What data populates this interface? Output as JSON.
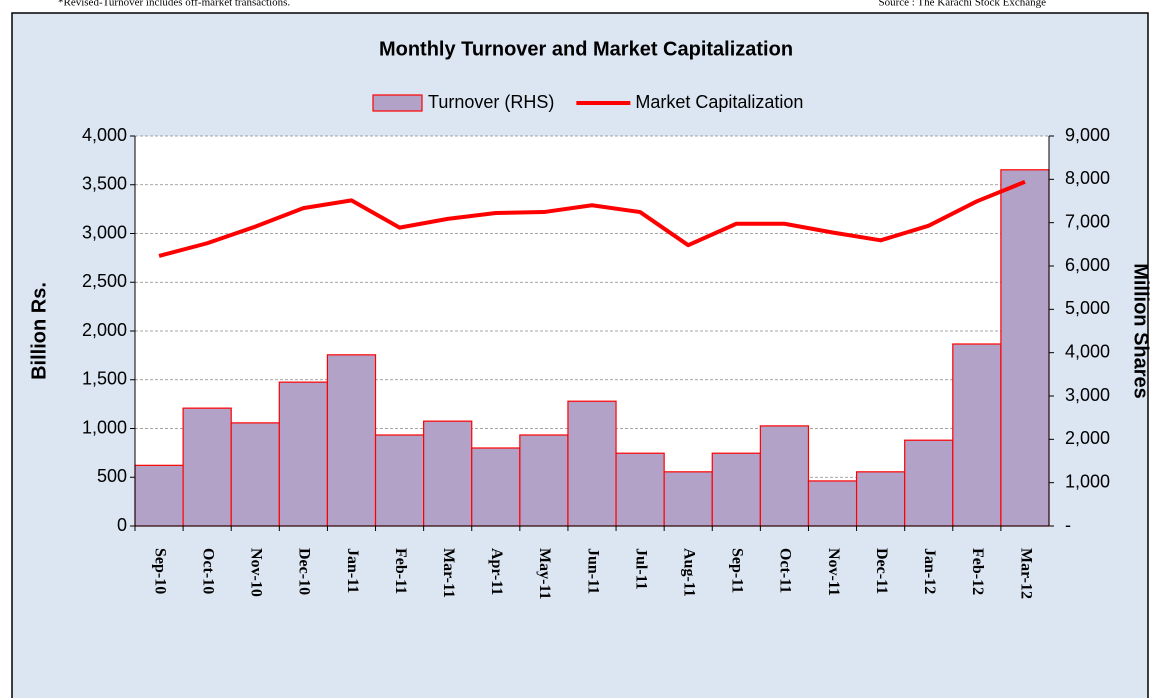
{
  "note": "*Revised-Turnover includes off-market transactions.",
  "source": "Source : The Karachi Stock Exchange",
  "chart_data": {
    "type": "bar_line",
    "title": "Monthly Turnover and Market Capitalization",
    "ylabel": "Billion Rs.",
    "y2label": "Million Shares",
    "categories": [
      "Sep-10",
      "Oct-10",
      "Nov-10",
      "Dec-10",
      "Jan-11",
      "Feb-11",
      "Mar-11",
      "Apr-11",
      "May-11",
      "Jun-11",
      "Jul-11",
      "Aug-11",
      "Sep-11",
      "Oct-11",
      "Nov-11",
      "Dec-11",
      "Jan-12",
      "Feb-12",
      "Mar-12"
    ],
    "series": [
      {
        "name": "Turnover (RHS)",
        "type": "bar",
        "axis": "y2",
        "color": "#b3a2c7",
        "edgecolor": "#ff0000",
        "values": [
          1400,
          2720,
          2380,
          3320,
          3950,
          2100,
          2420,
          1800,
          2100,
          2880,
          1680,
          1250,
          1680,
          2310,
          1040,
          1250,
          1980,
          4200,
          8220
        ]
      },
      {
        "name": "Market Capitalization",
        "type": "line",
        "color": "#ff0000",
        "values": [
          2770,
          2900,
          3070,
          3260,
          3340,
          3060,
          3150,
          3210,
          3220,
          3290,
          3220,
          2880,
          3100,
          3100,
          3010,
          2930,
          3080,
          3330,
          3530
        ]
      }
    ],
    "ylim": [
      0,
      4000
    ],
    "yticks": [
      0,
      500,
      {
        "value": 1000,
        "label": "1,000"
      },
      {
        "value": 1500,
        "label": "1,500"
      },
      {
        "value": 2000,
        "label": "2,000"
      },
      {
        "value": 2500,
        "label": "2,500"
      },
      {
        "value": 3000,
        "label": "3,000"
      },
      {
        "value": 3500,
        "label": "3,500"
      },
      {
        "value": 4000,
        "label": "4,000"
      }
    ],
    "y2lim": [
      0,
      9000
    ],
    "y2ticks": [
      {
        "value": 0,
        "label": "-"
      },
      {
        "value": 1000,
        "label": "1,000"
      },
      {
        "value": 2000,
        "label": "2,000"
      },
      {
        "value": 3000,
        "label": "3,000"
      },
      {
        "value": 4000,
        "label": "4,000"
      },
      {
        "value": 5000,
        "label": "5,000"
      },
      {
        "value": 6000,
        "label": "6,000"
      },
      {
        "value": 7000,
        "label": "7,000"
      },
      {
        "value": 8000,
        "label": "8,000"
      },
      {
        "value": 9000,
        "label": "9,000"
      }
    ],
    "grid": true,
    "legend": "top"
  }
}
